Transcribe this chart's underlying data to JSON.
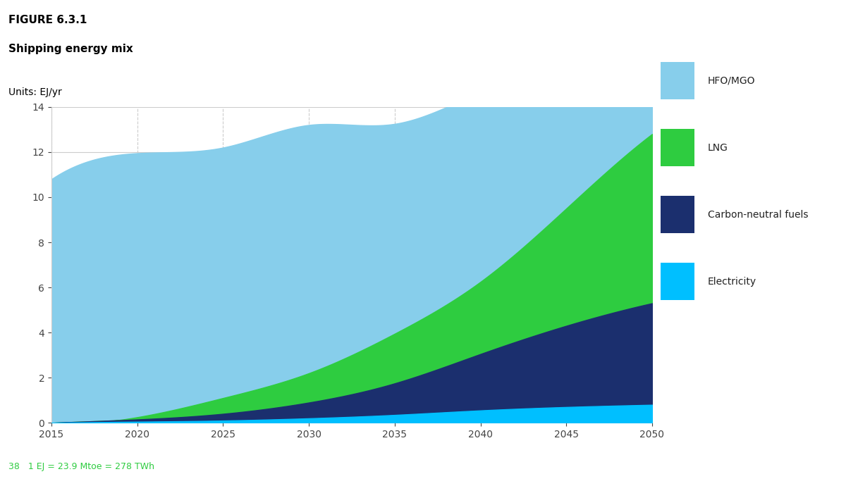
{
  "figure_label": "FIGURE 6.3.1",
  "title": "Shipping energy mix",
  "units_label": "Units: EJ/yr",
  "footnote": "38   1 EJ = 23.9 Mtoe = 278 TWh",
  "years": [
    2015,
    2020,
    2025,
    2030,
    2035,
    2040,
    2045,
    2050
  ],
  "electricity": [
    0.0,
    0.05,
    0.1,
    0.2,
    0.35,
    0.55,
    0.7,
    0.8
  ],
  "carbon_neutral": [
    0.0,
    0.1,
    0.3,
    0.7,
    1.4,
    2.5,
    3.6,
    4.5
  ],
  "lng": [
    0.0,
    0.1,
    0.7,
    1.3,
    2.2,
    3.2,
    5.2,
    7.5
  ],
  "hfo_mgo": [
    10.8,
    11.7,
    11.1,
    11.0,
    9.3,
    8.4,
    6.3,
    3.5
  ],
  "color_hfo": "#87CEEB",
  "color_lng": "#2ECC40",
  "color_carbon_neutral": "#1B2F6E",
  "color_electricity": "#00BFFF",
  "legend_labels": [
    "HFO/MGO",
    "LNG",
    "Carbon-neutral fuels",
    "Electricity"
  ],
  "ylim": [
    0,
    14
  ],
  "yticks": [
    0,
    2,
    4,
    6,
    8,
    10,
    12,
    14
  ],
  "xticks": [
    2015,
    2020,
    2025,
    2030,
    2035,
    2040,
    2045,
    2050
  ],
  "background_color": "#ffffff",
  "grid_color": "#cccccc",
  "figure_label_color": "#000000",
  "title_color": "#000000",
  "units_color": "#000000",
  "footnote_color": "#2ECC40",
  "footnote_number_color": "#2ECC40"
}
